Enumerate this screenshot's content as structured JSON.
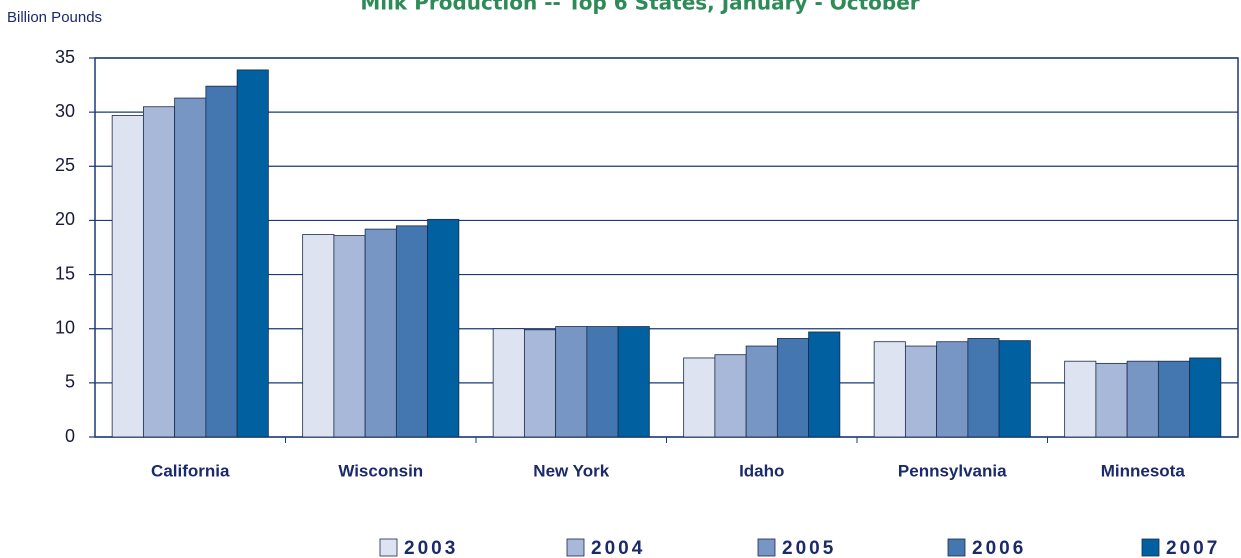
{
  "chart_data": {
    "type": "bar",
    "title": "Milk Production -- Top 6 States, January - October",
    "y_label": "Billion Pounds",
    "categories": [
      "California",
      "Wisconsin",
      "New York",
      "Idaho",
      "Pennsylvania",
      "Minnesota"
    ],
    "series": [
      {
        "name": "2003",
        "color": "#dde3f0",
        "values": [
          29.7,
          18.7,
          10.0,
          7.3,
          8.8,
          7.0
        ]
      },
      {
        "name": "2004",
        "color": "#a8b8d8",
        "values": [
          30.5,
          18.6,
          9.9,
          7.6,
          8.4,
          6.8
        ]
      },
      {
        "name": "2005",
        "color": "#7896c4",
        "values": [
          31.3,
          19.2,
          10.2,
          8.4,
          8.8,
          7.0
        ]
      },
      {
        "name": "2006",
        "color": "#4477b0",
        "values": [
          32.4,
          19.5,
          10.2,
          9.1,
          9.1,
          7.0
        ]
      },
      {
        "name": "2007",
        "color": "#0060a0",
        "values": [
          33.9,
          20.1,
          10.2,
          9.7,
          8.9,
          7.3
        ]
      }
    ],
    "ylim": [
      0,
      35
    ],
    "yticks": [
      0,
      5,
      10,
      15,
      20,
      25,
      30,
      35
    ],
    "grid": true
  }
}
